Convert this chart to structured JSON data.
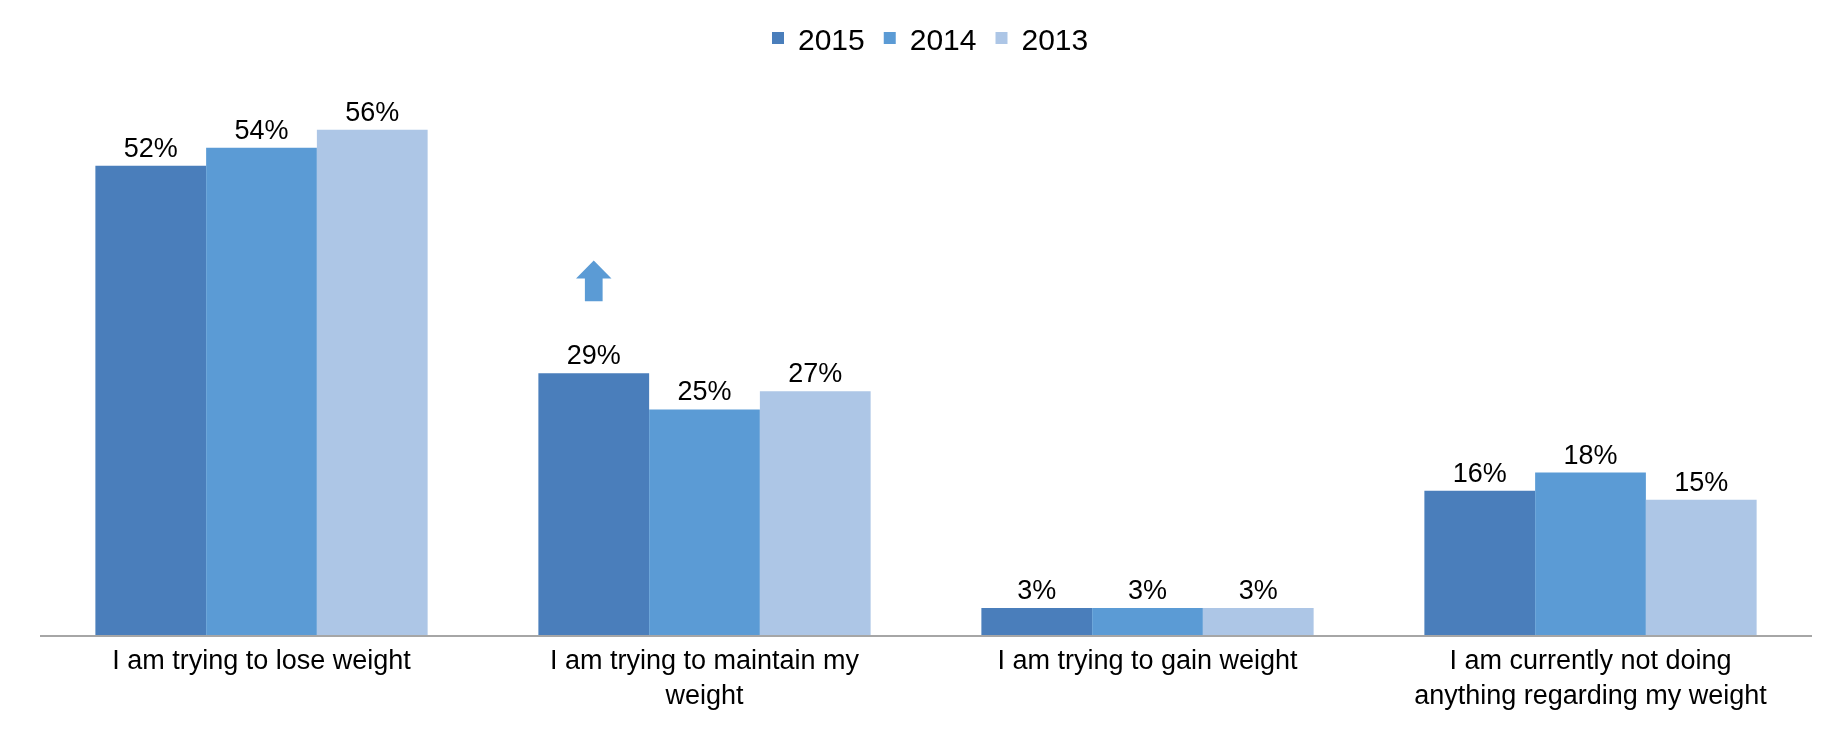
{
  "chart_data": {
    "type": "bar",
    "categories": [
      "I am trying to lose weight",
      "I am trying to maintain my weight",
      "I am trying to gain weight",
      "I am currently not doing anything regarding my weight"
    ],
    "series": [
      {
        "name": "2015",
        "color": "#4a7ebb",
        "values": [
          52,
          29,
          3,
          16
        ],
        "value_labels": [
          "52%",
          "29%",
          "3%",
          "16%"
        ]
      },
      {
        "name": "2014",
        "color": "#5b9bd5",
        "values": [
          54,
          25,
          3,
          18
        ],
        "value_labels": [
          "54%",
          "25%",
          "3%",
          "18%"
        ]
      },
      {
        "name": "2013",
        "color": "#adc6e6",
        "values": [
          56,
          27,
          3,
          15
        ],
        "value_labels": [
          "56%",
          "27%",
          "3%",
          "15%"
        ]
      }
    ],
    "legend": "top"
  }
}
